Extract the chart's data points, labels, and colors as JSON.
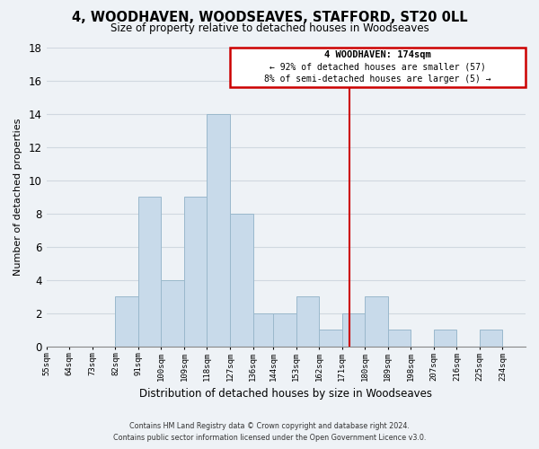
{
  "title": "4, WOODHAVEN, WOODSEAVES, STAFFORD, ST20 0LL",
  "subtitle": "Size of property relative to detached houses in Woodseaves",
  "xlabel": "Distribution of detached houses by size in Woodseaves",
  "ylabel": "Number of detached properties",
  "bar_color": "#c8daea",
  "bar_edge_color": "#9ab8cc",
  "bins": [
    55,
    64,
    73,
    82,
    91,
    100,
    109,
    118,
    127,
    136,
    144,
    153,
    162,
    171,
    180,
    189,
    198,
    207,
    216,
    225,
    234
  ],
  "bin_width": 9,
  "counts": [
    0,
    0,
    0,
    3,
    9,
    4,
    9,
    14,
    8,
    2,
    2,
    3,
    1,
    2,
    3,
    1,
    0,
    1,
    0,
    1
  ],
  "tick_labels": [
    "55sqm",
    "64sqm",
    "73sqm",
    "82sqm",
    "91sqm",
    "100sqm",
    "109sqm",
    "118sqm",
    "127sqm",
    "136sqm",
    "144sqm",
    "153sqm",
    "162sqm",
    "171sqm",
    "180sqm",
    "189sqm",
    "198sqm",
    "207sqm",
    "216sqm",
    "225sqm",
    "234sqm"
  ],
  "vline_x": 174,
  "vline_color": "#cc0000",
  "ylim": [
    0,
    18
  ],
  "yticks": [
    0,
    2,
    4,
    6,
    8,
    10,
    12,
    14,
    16,
    18
  ],
  "annotation_title": "4 WOODHAVEN: 174sqm",
  "annotation_line1": "← 92% of detached houses are smaller (57)",
  "annotation_line2": "8% of semi-detached houses are larger (5) →",
  "annotation_box_color": "#ffffff",
  "annotation_box_edge": "#cc0000",
  "footer_line1": "Contains HM Land Registry data © Crown copyright and database right 2024.",
  "footer_line2": "Contains public sector information licensed under the Open Government Licence v3.0.",
  "grid_color": "#d0d8e0",
  "background_color": "#eef2f6"
}
